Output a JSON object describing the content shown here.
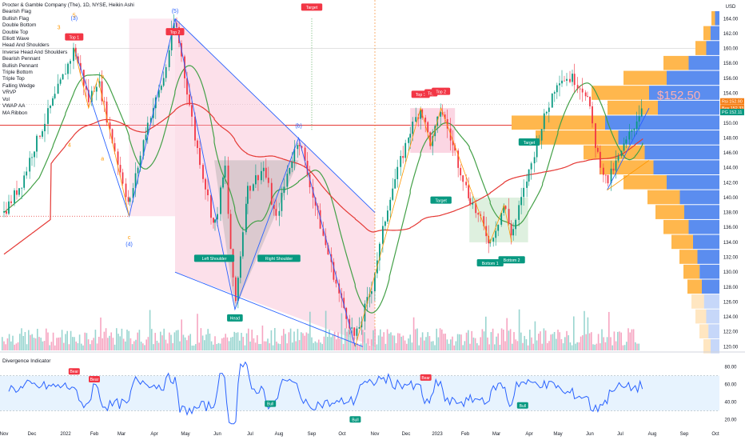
{
  "chart_data": {
    "type": "candlestick",
    "title": "Procter & Gamble Company (The), 1D, NYSE, Heikin Ashi",
    "currency": "USD",
    "indicators_legend": [
      "Bearish Flag",
      "Bullish Flag",
      "Double Bottom",
      "Double Top",
      "Elliott Wave",
      "Head And Shoulders",
      "Inverse Head And Shoulders",
      "Bearish Pennant",
      "Bullish Pennant",
      "Triple Bottom",
      "Triple Top",
      "Falling Wedge",
      "VRVP",
      "Vol",
      "VWAP AA",
      "MA Ribbon"
    ],
    "x_ticks": [
      "Nov",
      "Dec",
      "2022",
      "Feb",
      "Mar",
      "Apr",
      "May",
      "Jun",
      "Jul",
      "Aug",
      "Sep",
      "Oct",
      "Nov",
      "Dec",
      "2023",
      "Feb",
      "Mar",
      "Apr",
      "May",
      "Jun",
      "Jul",
      "Aug",
      "Sep",
      "Oct"
    ],
    "y_ticks": [
      120,
      122,
      124,
      126,
      128,
      130,
      132,
      134,
      136,
      138,
      140,
      142,
      144,
      146,
      148,
      150,
      152,
      154,
      156,
      158,
      160,
      162,
      164
    ],
    "ylim": [
      119.5,
      166.5
    ],
    "price_series": [
      {
        "date": "2021-11",
        "value": 138
      },
      {
        "date": "2021-11-20",
        "value": 142
      },
      {
        "date": "2021-12",
        "value": 146
      },
      {
        "date": "2021-12-20",
        "value": 153
      },
      {
        "date": "2022-01",
        "value": 157
      },
      {
        "date": "2022-01-10",
        "value": 160
      },
      {
        "date": "2022-01-25",
        "value": 153
      },
      {
        "date": "2022-02-05",
        "value": 156
      },
      {
        "date": "2022-02-20",
        "value": 148
      },
      {
        "date": "2022-03-08",
        "value": 139
      },
      {
        "date": "2022-03-25",
        "value": 150
      },
      {
        "date": "2022-04-10",
        "value": 156
      },
      {
        "date": "2022-04-21",
        "value": 164
      },
      {
        "date": "2022-05-10",
        "value": 148
      },
      {
        "date": "2022-05-28",
        "value": 136
      },
      {
        "date": "2022-06-08",
        "value": 144
      },
      {
        "date": "2022-06-17",
        "value": 125
      },
      {
        "date": "2022-06-28",
        "value": 141
      },
      {
        "date": "2022-07-15",
        "value": 144
      },
      {
        "date": "2022-07-28",
        "value": 137
      },
      {
        "date": "2022-08-10",
        "value": 144
      },
      {
        "date": "2022-08-19",
        "value": 148
      },
      {
        "date": "2022-09-10",
        "value": 136
      },
      {
        "date": "2022-09-28",
        "value": 127
      },
      {
        "date": "2022-10-13",
        "value": 121
      },
      {
        "date": "2022-10-28",
        "value": 128
      },
      {
        "date": "2022-11-15",
        "value": 140
      },
      {
        "date": "2022-12-05",
        "value": 149
      },
      {
        "date": "2022-12-15",
        "value": 152
      },
      {
        "date": "2022-12-25",
        "value": 147
      },
      {
        "date": "2023-01-05",
        "value": 152
      },
      {
        "date": "2023-01-20",
        "value": 146
      },
      {
        "date": "2023-02-05",
        "value": 140
      },
      {
        "date": "2023-02-25",
        "value": 134
      },
      {
        "date": "2023-03-08",
        "value": 139
      },
      {
        "date": "2023-03-15",
        "value": 135
      },
      {
        "date": "2023-03-30",
        "value": 143
      },
      {
        "date": "2023-04-15",
        "value": 150
      },
      {
        "date": "2023-05-01",
        "value": 156
      },
      {
        "date": "2023-05-15",
        "value": 156
      },
      {
        "date": "2023-05-28",
        "value": 154
      },
      {
        "date": "2023-06-08",
        "value": 146
      },
      {
        "date": "2023-06-18",
        "value": 142
      },
      {
        "date": "2023-07-05",
        "value": 147
      },
      {
        "date": "2023-07-15",
        "value": 150
      },
      {
        "date": "2023-07-22",
        "value": 152.5
      }
    ],
    "current_price": "152.50",
    "price_tags": [
      {
        "label": "Rsi",
        "value": "152.90",
        "color": "#f57f17"
      },
      {
        "label": "Buy",
        "value": "152.33",
        "color": "#f57f17"
      },
      {
        "label": "PG",
        "value": "152.11",
        "color": "#089981"
      }
    ],
    "pattern_labels": [
      {
        "text": "Top 1",
        "kind": "bear"
      },
      {
        "text": "Top 2",
        "kind": "bear"
      },
      {
        "text": "Target",
        "kind": "bear"
      },
      {
        "text": "Left Shoulder",
        "kind": "bull"
      },
      {
        "text": "Head",
        "kind": "bull"
      },
      {
        "text": "Right Shoulder",
        "kind": "bull"
      },
      {
        "text": "Top 1",
        "kind": "bear"
      },
      {
        "text": "Top",
        "kind": "bear"
      },
      {
        "text": "Top 2",
        "kind": "bear"
      },
      {
        "text": "Target",
        "kind": "bull"
      },
      {
        "text": "Target",
        "kind": "bull"
      },
      {
        "text": "Bottom 1",
        "kind": "bull"
      },
      {
        "text": "Bottom 2",
        "kind": "bull"
      }
    ],
    "wave_labels": {
      "w3": "(3)",
      "w5": "(5)",
      "w4": "(4)",
      "wb": "(b)",
      "n3": "3",
      "n5": "5",
      "n4": "4",
      "a": "a",
      "b": "b",
      "c": "c"
    },
    "divergence": {
      "title": "Divergence Indicator",
      "y_ticks": [
        20,
        40,
        60,
        80
      ],
      "ylim": [
        12,
        88
      ],
      "band": [
        30,
        70
      ],
      "signals": [
        {
          "text": "Bear"
        },
        {
          "text": "Bear"
        },
        {
          "text": "Bull"
        },
        {
          "text": "Bull"
        },
        {
          "text": "Bear"
        },
        {
          "text": "Bull"
        }
      ]
    },
    "colors": {
      "up": "#089981",
      "down": "#f23645",
      "wave": "#2962ff",
      "ma_red": "#e53935",
      "ma_green": "#43a047",
      "vrvp_up": "#ffb74d",
      "vrvp_dn": "#5b8def"
    }
  }
}
